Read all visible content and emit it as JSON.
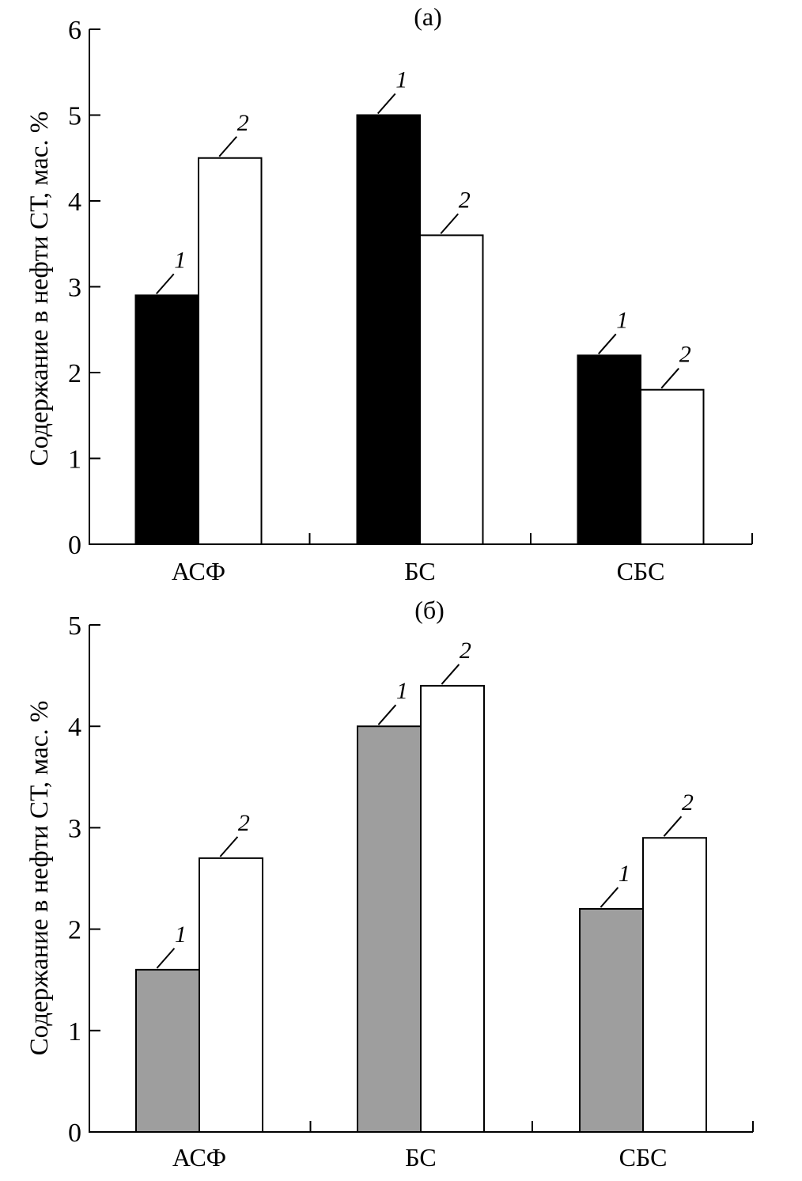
{
  "chart_data": [
    {
      "type": "bar",
      "title": "(a)",
      "xlabel": "",
      "ylabel": "Содержание в нефти СТ, мас. %",
      "categories": [
        "АСФ",
        "БС",
        "СБС"
      ],
      "ylim": [
        0,
        6
      ],
      "yticks": [
        0,
        1,
        2,
        3,
        4,
        5,
        6
      ],
      "grid": false,
      "legend": "none (bars annotated with series numbers)",
      "series": [
        {
          "name": "1",
          "label": "1",
          "color": "#000000",
          "values": [
            2.9,
            5.0,
            2.2
          ]
        },
        {
          "name": "2",
          "label": "2",
          "color": "#ffffff",
          "values": [
            4.5,
            3.6,
            1.8
          ]
        }
      ]
    },
    {
      "type": "bar",
      "title": "(б)",
      "xlabel": "",
      "ylabel": "Содержание в нефти СТ, мас. %",
      "categories": [
        "АСФ",
        "БС",
        "СБС"
      ],
      "ylim": [
        0,
        5
      ],
      "yticks": [
        0,
        1,
        2,
        3,
        4,
        5
      ],
      "grid": false,
      "legend": "none (bars annotated with series numbers)",
      "series": [
        {
          "name": "1",
          "label": "1",
          "color": "#9e9e9e",
          "values": [
            1.6,
            4.0,
            2.2
          ]
        },
        {
          "name": "2",
          "label": "2",
          "color": "#ffffff",
          "values": [
            2.7,
            4.4,
            2.9
          ]
        }
      ]
    }
  ]
}
